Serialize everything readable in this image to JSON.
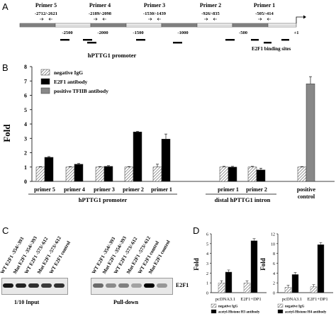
{
  "panel_a": {
    "letter": "A",
    "primers": [
      {
        "name": "Primer 5",
        "range": "-2712/-2621"
      },
      {
        "name": "Primer 4",
        "range": "-2189/-2098"
      },
      {
        "name": "Primer 3",
        "range": "-1530/-1439"
      },
      {
        "name": "Primer 2",
        "range": "-926/-835"
      },
      {
        "name": "Primer 1",
        "range": "-505/-414"
      }
    ],
    "ticks": [
      "-2500",
      "-2000",
      "-1500",
      "-1000",
      "-500",
      "+1"
    ],
    "promoter_label": "hPTTG1 promoter",
    "e2f1_sites_label": "E2F1 binding sites"
  },
  "panel_b": {
    "letter": "B",
    "ylabel": "Fold",
    "legend": [
      "negative IgG",
      "E2F1 antibody",
      "positive TFIIB antibody"
    ],
    "yticks": [
      "0",
      "1",
      "2",
      "3",
      "4",
      "5",
      "6",
      "7",
      "8"
    ],
    "group_labels": [
      "hPTTG1 promoter",
      "distal hPTTG1 intron"
    ]
  },
  "chart_data": [
    {
      "type": "bar",
      "ylabel": "Fold",
      "ylim": [
        0,
        8
      ],
      "categories": [
        "primer 5",
        "primer 4",
        "primer 3",
        "primer 2",
        "primer 1",
        "primer 1",
        "primer 2",
        "positive control"
      ],
      "series": [
        {
          "name": "negative IgG",
          "values": [
            1,
            1,
            1,
            1,
            1,
            1,
            1,
            1
          ]
        },
        {
          "name": "E2F1 antibody",
          "values": [
            1.68,
            1.2,
            1.05,
            3.45,
            2.95,
            1.0,
            0.8,
            null
          ]
        },
        {
          "name": "positive TFIIB antibody",
          "values": [
            null,
            null,
            null,
            null,
            null,
            null,
            null,
            6.8
          ]
        }
      ],
      "errors": {
        "negative IgG": [
          0.03,
          0.03,
          0.03,
          0.03,
          0.2,
          0.05,
          0.05,
          0.03
        ],
        "E2F1 antibody": [
          0.05,
          0.05,
          0.05,
          0.04,
          0.35,
          0.05,
          0.12,
          null
        ],
        "positive TFIIB antibody": [
          null,
          null,
          null,
          null,
          null,
          null,
          null,
          0.5
        ]
      },
      "legend_position": "top-left",
      "grid": false
    },
    {
      "type": "bar",
      "ylabel": "Fold",
      "ylim": [
        0,
        6
      ],
      "categories": [
        "pcDNA3.1",
        "E2F1+DP1"
      ],
      "series": [
        {
          "name": "negative IgG",
          "values": [
            1.0,
            1.0
          ]
        },
        {
          "name": "acetyl-Histone H3 antibody",
          "values": [
            2.1,
            5.3
          ]
        }
      ],
      "legend_position": "bottom"
    },
    {
      "type": "bar",
      "ylabel": "Fold",
      "ylim": [
        0,
        12
      ],
      "categories": [
        "pcDNA3.1",
        "E2F1+DP1"
      ],
      "series": [
        {
          "name": "negative IgG",
          "values": [
            1.1,
            1.2
          ]
        },
        {
          "name": "acetyl-Histone H4 antibody",
          "values": [
            3.7,
            9.8
          ]
        }
      ],
      "legend_position": "bottom"
    }
  ],
  "panel_c": {
    "letter": "C",
    "lanes_left": [
      "WT E2F1 -354/-393",
      "Mut E2F1 -354/-393",
      "WT E2F1 -573/-612",
      "Mut E2F1 -573/-612",
      "WT E2F1 control"
    ],
    "lanes_right": [
      "WT E2F1 -354/-393",
      "Mut E2F1 -354/-393",
      "WT E2F1 -573/-612",
      "Mut E2F1 -573/-612",
      "WT E2F1 control",
      "Mut E2F1 control"
    ],
    "band_label": "E2F1",
    "caption_left": "1/10 Input",
    "caption_right": "Pull-down",
    "band_intensity_left": [
      0.9,
      0.85,
      0.8,
      0.75,
      0.8
    ],
    "band_intensity_right": [
      0.55,
      0.4,
      0.45,
      0.3,
      1.0,
      0.35
    ]
  },
  "panel_d": {
    "letter": "D",
    "left": {
      "yticks": [
        "0",
        "1",
        "2",
        "3",
        "4",
        "5",
        "6"
      ],
      "categories": [
        "pcDNA3.1",
        "E2F1+DP1"
      ],
      "legend": [
        "negative IgG",
        "acetyl-Histone H3 antibody"
      ]
    },
    "right": {
      "yticks": [
        "0",
        "2",
        "4",
        "6",
        "8",
        "10",
        "12"
      ],
      "categories": [
        "pcDNA3.1",
        "E2F1+DP1"
      ],
      "legend": [
        "negative IgG",
        "acetyl-Histone H4 antibody"
      ]
    }
  }
}
